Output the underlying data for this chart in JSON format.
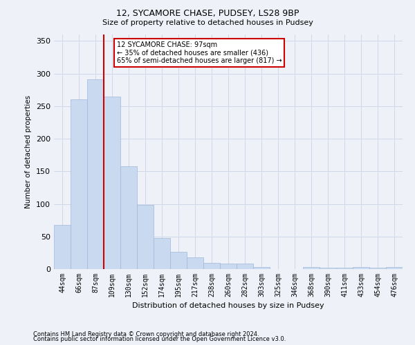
{
  "title1": "12, SYCAMORE CHASE, PUDSEY, LS28 9BP",
  "title2": "Size of property relative to detached houses in Pudsey",
  "xlabel": "Distribution of detached houses by size in Pudsey",
  "ylabel": "Number of detached properties",
  "bar_labels": [
    "44sqm",
    "66sqm",
    "87sqm",
    "109sqm",
    "130sqm",
    "152sqm",
    "174sqm",
    "195sqm",
    "217sqm",
    "238sqm",
    "260sqm",
    "282sqm",
    "303sqm",
    "325sqm",
    "346sqm",
    "368sqm",
    "390sqm",
    "411sqm",
    "433sqm",
    "454sqm",
    "476sqm"
  ],
  "bar_values": [
    68,
    260,
    291,
    265,
    158,
    98,
    48,
    27,
    18,
    10,
    8,
    8,
    3,
    0,
    0,
    3,
    2,
    2,
    3,
    2,
    3
  ],
  "bar_color": "#c9d9f0",
  "bar_edge_color": "#a0b8d8",
  "vline_x_index": 2,
  "vline_color": "#cc0000",
  "annotation_text": "12 SYCAMORE CHASE: 97sqm\n← 35% of detached houses are smaller (436)\n65% of semi-detached houses are larger (817) →",
  "annotation_box_color": "#ffffff",
  "annotation_box_edge": "#cc0000",
  "ylim": [
    0,
    360
  ],
  "yticks": [
    0,
    50,
    100,
    150,
    200,
    250,
    300,
    350
  ],
  "grid_color": "#d0d8e8",
  "background_color": "#eef2f8",
  "footnote1": "Contains HM Land Registry data © Crown copyright and database right 2024.",
  "footnote2": "Contains public sector information licensed under the Open Government Licence v3.0."
}
